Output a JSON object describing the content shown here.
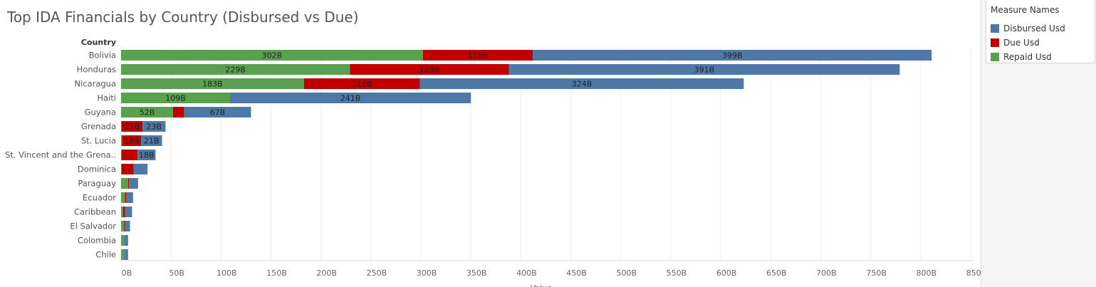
{
  "title": "Top IDA Financials by Country (Disbursed vs Due)",
  "colors": {
    "Disbursed Usd": "#4e79a7",
    "Due Usd": "#c00000",
    "Repaid Usd": "#59a14f"
  },
  "legend": {
    "title": "Measure Names",
    "items": [
      {
        "label": "Disbursed Usd",
        "color": "#4e79a7"
      },
      {
        "label": "Due Usd",
        "color": "#c00000"
      },
      {
        "label": "Repaid Usd",
        "color": "#59a14f"
      }
    ]
  },
  "chart_data": {
    "type": "bar",
    "orientation": "horizontal",
    "stacked": true,
    "title": "Top IDA Financials by Country (Disbursed vs Due)",
    "ylabel": "Country",
    "xlim": [
      0,
      850
    ],
    "xticks": [
      "0B",
      "50B",
      "100B",
      "150B",
      "200B",
      "250B",
      "300B",
      "350B",
      "400B",
      "450B",
      "500B",
      "550B",
      "600B",
      "650B",
      "700B",
      "750B",
      "800B",
      "850B"
    ],
    "categories": [
      "Bolivia",
      "Honduras",
      "Nicaragua",
      "Haiti",
      "Guyana",
      "Grenada",
      "St. Lucia",
      "St. Vincent and the Grena..",
      "Dominica",
      "Paraguay",
      "Ecuador",
      "Caribbean",
      "El Salvador",
      "Colombia",
      "Chile"
    ],
    "series": [
      {
        "name": "Repaid Usd",
        "values": [
          302,
          229,
          183,
          109,
          52,
          0.5,
          1,
          0.5,
          0.5,
          7,
          4,
          2,
          3,
          3,
          3
        ]
      },
      {
        "name": "Due Usd",
        "values": [
          110,
          159,
          116,
          0,
          11,
          21,
          19,
          16,
          12,
          1,
          1,
          2,
          1,
          0,
          0
        ]
      },
      {
        "name": "Disbursed Usd",
        "values": [
          399,
          391,
          324,
          241,
          67,
          23,
          21,
          18,
          14,
          9,
          7,
          7,
          5,
          4,
          4
        ]
      }
    ],
    "data_labels": [
      [
        "302B",
        "110B",
        "399B"
      ],
      [
        "229B",
        "159B",
        "391B"
      ],
      [
        "183B",
        "116B",
        "324B"
      ],
      [
        "109B",
        "",
        "241B"
      ],
      [
        "52B",
        "",
        "67B"
      ],
      [
        "",
        "21B",
        "23B"
      ],
      [
        "",
        "19B",
        "21B"
      ],
      [
        "",
        "",
        "18B"
      ],
      [
        "",
        "",
        ""
      ],
      [
        "",
        "",
        ""
      ],
      [
        "",
        "",
        ""
      ],
      [
        "",
        "",
        ""
      ],
      [
        "",
        "",
        ""
      ],
      [
        "",
        "",
        ""
      ],
      [
        "",
        "",
        ""
      ]
    ]
  }
}
